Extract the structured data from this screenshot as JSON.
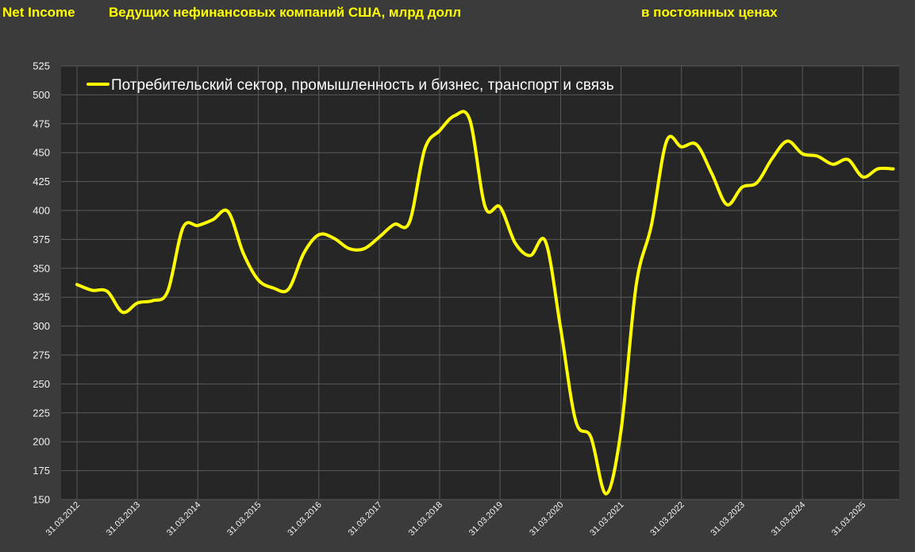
{
  "header": {
    "title_left": "Net Income",
    "title_main": "Ведущих нефинансовых компаний США, млрд долл",
    "title_right": "в постоянных ценах"
  },
  "colors": {
    "background": "#3b3b3b",
    "plot_background": "#262626",
    "grid": "#5a5a5a",
    "line": "#ffff00",
    "title": "#ffff00"
  },
  "chart_data": {
    "type": "line",
    "x_tick_labels": [
      "31.03.2012",
      "31.03.2013",
      "31.03.2014",
      "31.03.2015",
      "31.03.2016",
      "31.03.2017",
      "31.03.2018",
      "31.03.2019",
      "31.03.2020",
      "31.03.2021",
      "31.03.2022",
      "31.03.2023",
      "31.03.2024",
      "31.03.2025"
    ],
    "ylim": [
      150,
      525
    ],
    "y_ticks": [
      150,
      175,
      200,
      225,
      250,
      275,
      300,
      325,
      350,
      375,
      400,
      425,
      450,
      475,
      500,
      525
    ],
    "grid": true,
    "legend_position": "top-left",
    "series": [
      {
        "name": "Потребительский сектор, промышленность и бизнес, транспорт и связь",
        "x": [
          "31.03.2012",
          "30.06.2012",
          "30.09.2012",
          "31.12.2012",
          "31.03.2013",
          "30.06.2013",
          "30.09.2013",
          "31.12.2013",
          "31.03.2014",
          "30.06.2014",
          "30.09.2014",
          "31.12.2014",
          "31.03.2015",
          "30.06.2015",
          "30.09.2015",
          "31.12.2015",
          "31.03.2016",
          "30.06.2016",
          "30.09.2016",
          "31.12.2016",
          "31.03.2017",
          "30.06.2017",
          "30.09.2017",
          "31.12.2017",
          "31.03.2018",
          "30.06.2018",
          "30.09.2018",
          "31.12.2018",
          "31.03.2019",
          "30.06.2019",
          "30.09.2019",
          "31.12.2019",
          "31.03.2020",
          "30.06.2020",
          "30.09.2020",
          "31.12.2020",
          "31.03.2021",
          "30.06.2021",
          "30.09.2021",
          "31.12.2021",
          "31.03.2022",
          "30.06.2022",
          "30.09.2022",
          "31.12.2022",
          "31.03.2023",
          "30.06.2023",
          "30.09.2023",
          "31.12.2023",
          "31.03.2024",
          "30.06.2024",
          "30.09.2024",
          "31.12.2024",
          "31.03.2025",
          "30.06.2025",
          "30.09.2025"
        ],
        "values": [
          336,
          331,
          330,
          312,
          320,
          322,
          330,
          385,
          387,
          392,
          399,
          363,
          340,
          333,
          332,
          363,
          379,
          376,
          367,
          367,
          377,
          388,
          390,
          453,
          469,
          482,
          478,
          403,
          403,
          372,
          361,
          373,
          298,
          218,
          204,
          155,
          210,
          335,
          387,
          460,
          455,
          457,
          432,
          405,
          420,
          424,
          445,
          460,
          449,
          447,
          440,
          444,
          429,
          436,
          436
        ]
      }
    ]
  }
}
